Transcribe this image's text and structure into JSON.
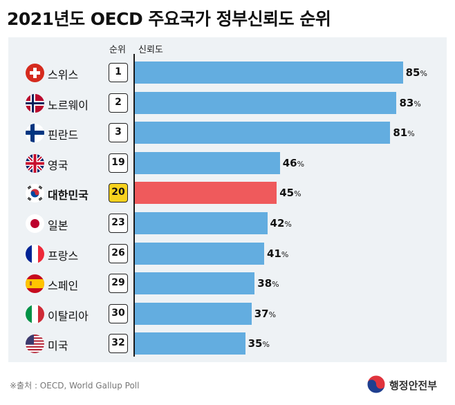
{
  "title": "2021년도 OECD 주요국가 정부신뢰도 순위",
  "headers": {
    "rank": "순위",
    "trust": "신뢰도"
  },
  "percent_sign": "%",
  "chart_data": {
    "type": "bar",
    "orientation": "horizontal",
    "title": "2021년도 OECD 주요국가 정부신뢰도 순위",
    "categories": [
      "스위스",
      "노르웨이",
      "핀란드",
      "영국",
      "대한민국",
      "일본",
      "프랑스",
      "스페인",
      "이탈리아",
      "미국"
    ],
    "ranks": [
      1,
      2,
      3,
      19,
      20,
      23,
      26,
      29,
      30,
      32
    ],
    "values": [
      85,
      83,
      81,
      46,
      45,
      42,
      41,
      38,
      37,
      35
    ],
    "unit": "%",
    "highlight": "대한민국",
    "xlim": [
      0,
      100
    ],
    "colors": {
      "bar": "#63ade0",
      "highlight_bar": "#ef5a5c",
      "highlight_rank": "#f7d21e"
    },
    "flag_icons": [
      "switzerland-flag-icon",
      "norway-flag-icon",
      "finland-flag-icon",
      "uk-flag-icon",
      "korea-flag-icon",
      "japan-flag-icon",
      "france-flag-icon",
      "spain-flag-icon",
      "italy-flag-icon",
      "usa-flag-icon"
    ]
  },
  "footer": {
    "source": "※출처 : OECD, World Gallup Poll",
    "ministry": "행정안전부"
  }
}
